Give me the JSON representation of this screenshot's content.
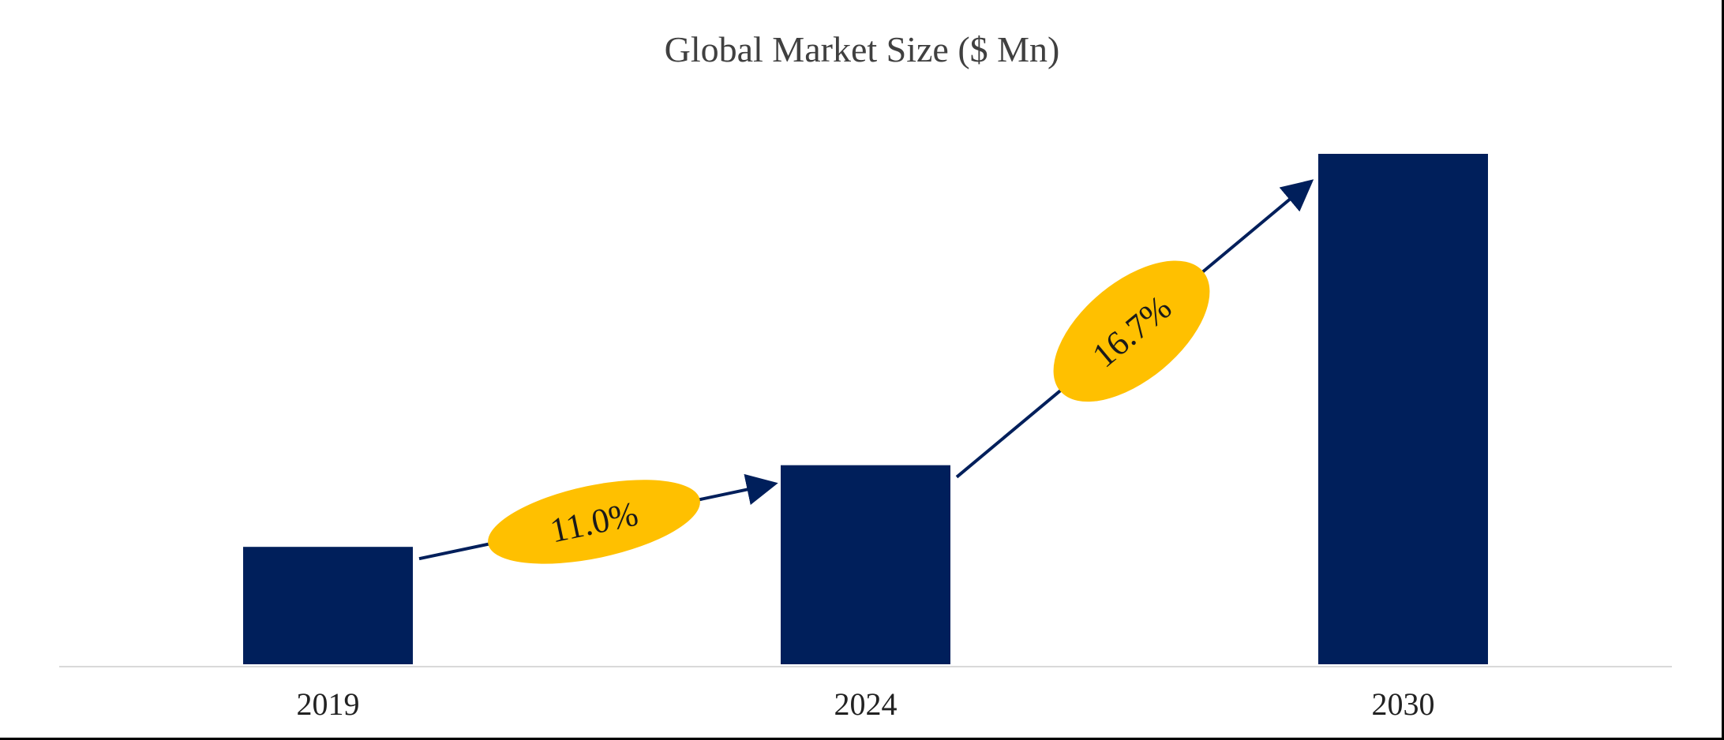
{
  "chart_data": {
    "type": "bar",
    "title": "Global Market Size ($ Mn)",
    "categories": [
      "2019",
      "2024",
      "2030"
    ],
    "series": [
      {
        "values": [
          23,
          39,
          100
        ]
      }
    ],
    "ylim": [
      0,
      100
    ],
    "xlabel": "",
    "ylabel": "",
    "grid": false,
    "value_axis_labels": false,
    "colors": {
      "bar": "#001f5b",
      "cagr_fill": "#ffc000",
      "arrow": "#001f5b",
      "baseline": "#d9d9d9"
    },
    "annotations": [
      {
        "type": "cagr",
        "from": "2019",
        "to": "2024",
        "label": "11.0%"
      },
      {
        "type": "cagr",
        "from": "2024",
        "to": "2030",
        "label": "16.7%"
      }
    ]
  }
}
